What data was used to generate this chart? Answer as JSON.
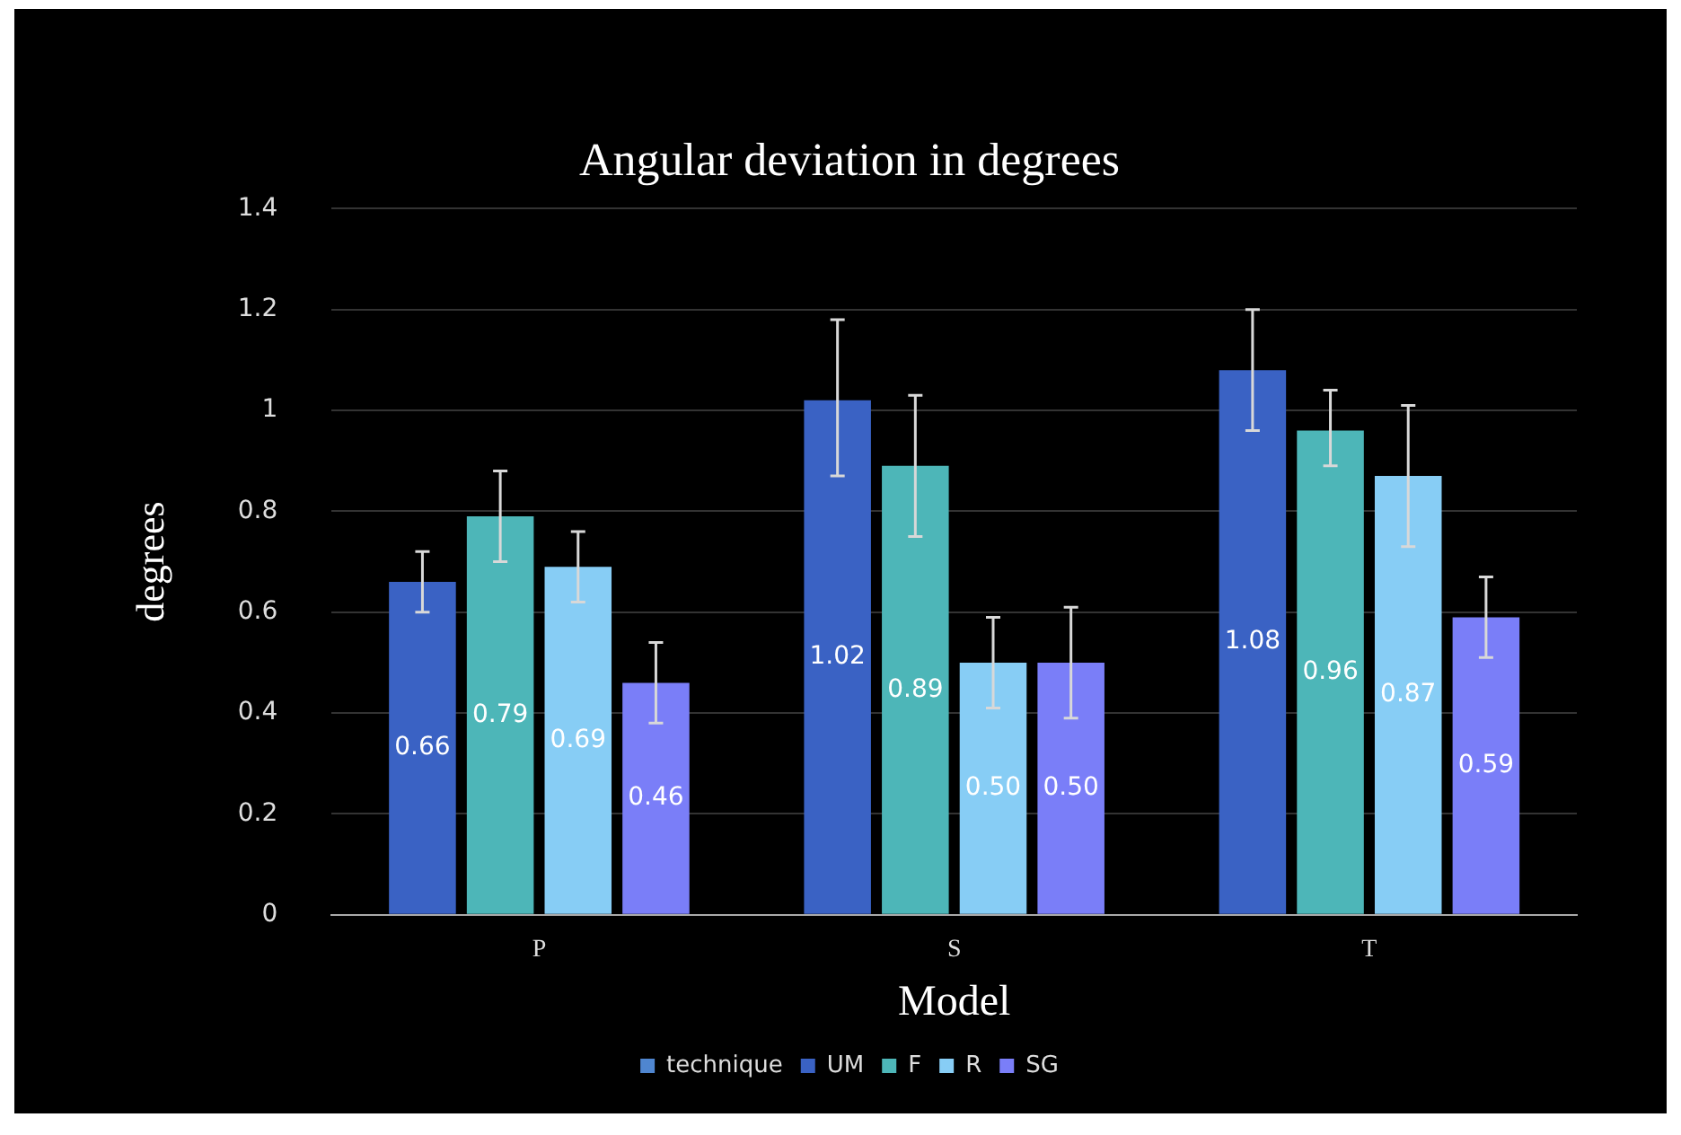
{
  "chart_data": {
    "type": "bar",
    "title": "Angular deviation in degrees",
    "xlabel": "Model",
    "ylabel": "degrees",
    "categories": [
      "P",
      "S",
      "T"
    ],
    "series": [
      {
        "name": "technique",
        "color": "#4f86d0",
        "values": [
          null,
          null,
          null
        ]
      },
      {
        "name": "UM",
        "color": "#3a62c4",
        "values": [
          0.66,
          1.02,
          1.08
        ],
        "value_labels": [
          "0.66",
          "1.02",
          "1.08"
        ],
        "errors": [
          [
            0.6,
            0.72
          ],
          [
            0.87,
            1.18
          ],
          [
            0.96,
            1.2
          ]
        ]
      },
      {
        "name": "F",
        "color": "#4db6b8",
        "values": [
          0.79,
          0.89,
          0.96
        ],
        "value_labels": [
          "0.79",
          "0.89",
          "0.96"
        ],
        "errors": [
          [
            0.7,
            0.88
          ],
          [
            0.75,
            1.03
          ],
          [
            0.89,
            1.04
          ]
        ]
      },
      {
        "name": "R",
        "color": "#87cdf5",
        "values": [
          0.69,
          0.5,
          0.87
        ],
        "value_labels": [
          "0.69",
          "0.50",
          "0.87"
        ],
        "errors": [
          [
            0.62,
            0.76
          ],
          [
            0.41,
            0.59
          ],
          [
            0.73,
            1.01
          ]
        ]
      },
      {
        "name": "SG",
        "color": "#7a7ef8",
        "values": [
          0.46,
          0.5,
          0.59
        ],
        "value_labels": [
          "0.46",
          "0.50",
          "0.59"
        ],
        "errors": [
          [
            0.38,
            0.54
          ],
          [
            0.39,
            0.61
          ],
          [
            0.51,
            0.67
          ]
        ]
      }
    ],
    "ylim": [
      0,
      1.4
    ],
    "yticks": [
      0,
      0.2,
      0.4,
      0.6,
      0.8,
      1,
      1.2,
      1.4
    ],
    "grid": "y",
    "legend": "bottom"
  }
}
